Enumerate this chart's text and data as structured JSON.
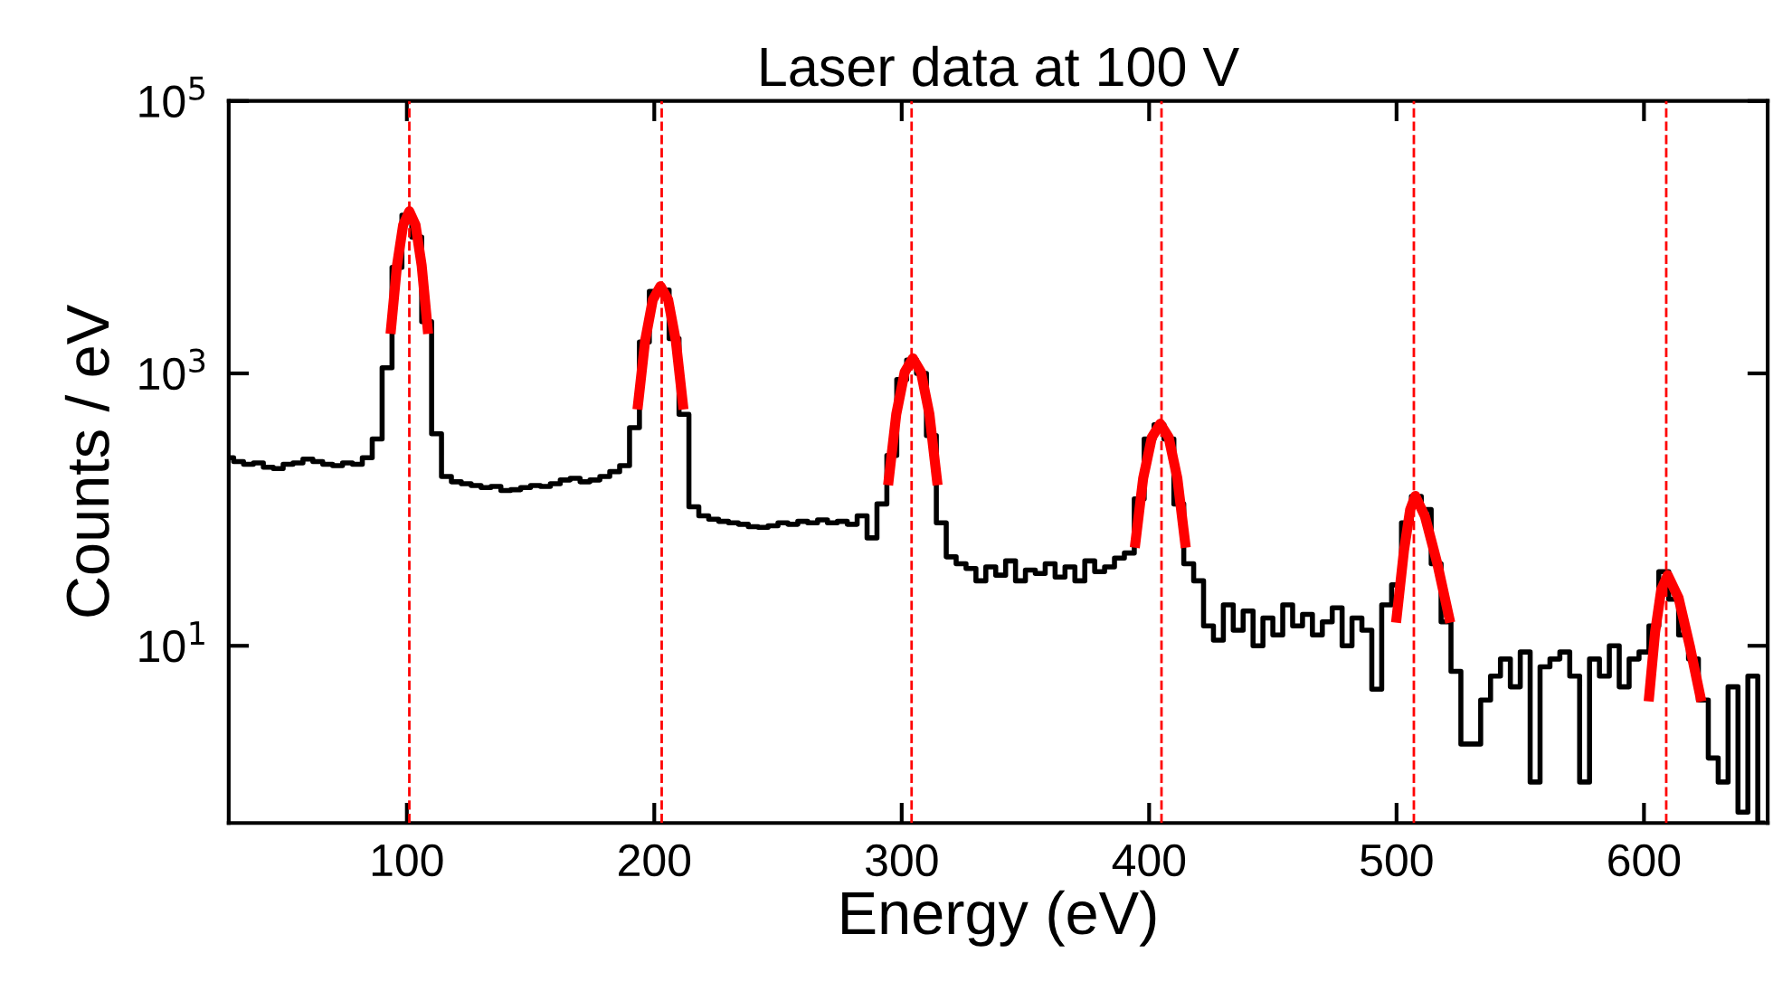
{
  "chart_data": {
    "type": "step",
    "title": "Laser data at 100 V",
    "xlabel": "Energy (eV)",
    "ylabel": "Counts / eV",
    "log": "y",
    "xlim": [
      28,
      650
    ],
    "xticks": [
      100,
      200,
      300,
      400,
      500,
      600
    ],
    "ylim": [
      0.5,
      100000
    ],
    "yticks": [
      {
        "value": 10,
        "label": "10$^{1}$"
      },
      {
        "value": 1000,
        "label": "10$^{3}$"
      },
      {
        "value": 100000,
        "label": "10$^{5}$"
      }
    ],
    "grid": false,
    "series": [
      {
        "color": "#000000",
        "x": [
          28,
          32,
          36,
          40,
          44,
          48,
          52,
          56,
          60,
          64,
          68,
          72,
          76,
          80,
          84,
          88,
          92,
          96,
          100,
          104,
          108,
          112,
          116,
          120,
          124,
          128,
          132,
          136,
          140,
          144,
          148,
          152,
          156,
          160,
          164,
          168,
          172,
          176,
          180,
          184,
          188,
          192,
          196,
          200,
          204,
          208,
          212,
          216,
          220,
          224,
          228,
          232,
          236,
          240,
          244,
          248,
          252,
          256,
          260,
          264,
          268,
          272,
          276,
          280,
          284,
          288,
          292,
          296,
          300,
          304,
          308,
          312,
          316,
          320,
          324,
          328,
          332,
          336,
          340,
          344,
          348,
          352,
          356,
          360,
          364,
          368,
          372,
          376,
          380,
          384,
          388,
          392,
          396,
          400,
          404,
          408,
          412,
          416,
          420,
          424,
          428,
          432,
          436,
          440,
          444,
          448,
          452,
          456,
          460,
          464,
          468,
          472,
          476,
          480,
          484,
          488,
          492,
          496,
          500,
          504,
          508,
          512,
          516,
          520,
          524,
          528,
          532,
          536,
          540,
          544,
          548,
          552,
          556,
          560,
          564,
          568,
          572,
          576,
          580,
          584,
          588,
          592,
          596,
          600,
          604,
          608,
          612,
          616,
          620,
          624,
          628,
          632,
          636,
          640,
          644,
          648
        ],
        "values": [
          240,
          225,
          215,
          220,
          205,
          200,
          215,
          220,
          235,
          225,
          215,
          210,
          220,
          215,
          240,
          330,
          1100,
          6000,
          14500,
          10000,
          2400,
          360,
          175,
          160,
          155,
          150,
          145,
          148,
          138,
          140,
          145,
          150,
          148,
          155,
          165,
          170,
          160,
          165,
          175,
          190,
          210,
          400,
          1700,
          4000,
          4100,
          1800,
          500,
          105,
          90,
          85,
          82,
          80,
          78,
          75,
          74,
          76,
          80,
          78,
          82,
          80,
          84,
          80,
          82,
          78,
          90,
          62,
          110,
          250,
          900,
          1250,
          1000,
          350,
          80,
          45,
          40,
          37,
          30,
          38,
          33,
          42,
          30,
          36,
          34,
          40,
          32,
          38,
          30,
          42,
          35,
          38,
          44,
          48,
          120,
          330,
          420,
          330,
          110,
          40,
          30,
          14,
          11,
          20,
          13,
          18,
          10,
          16,
          12,
          20,
          14,
          17,
          12,
          15,
          19,
          10,
          16,
          13,
          4.8,
          20,
          28,
          80,
          125,
          100,
          40,
          15,
          6.5,
          1.9,
          1.9,
          4,
          6,
          8,
          5,
          9,
          1,
          7,
          8,
          9,
          6,
          1,
          8,
          6,
          10,
          5,
          8,
          9,
          14,
          35,
          22,
          12,
          8,
          4,
          1.5,
          1,
          5,
          0.6,
          6,
          0.5
        ]
      },
      {
        "type": "line",
        "color": "#ff0000",
        "x": [
          93.4,
          96,
          98.5,
          101,
          103.5,
          106,
          108.6
        ],
        "values": [
          1950,
          6170,
          12300,
          15500,
          12300,
          6170,
          1950
        ]
      },
      {
        "type": "line",
        "color": "#ff0000",
        "x": [
          193.2,
          196.3,
          199.4,
          202.5,
          205.6,
          208.7,
          211.8
        ],
        "values": [
          543,
          1740,
          3470,
          4370,
          3470,
          1740,
          543
        ]
      },
      {
        "type": "line",
        "color": "#ff0000",
        "x": [
          294.5,
          297.8,
          301.2,
          304.5,
          307.8,
          311.2,
          314.5
        ],
        "values": [
          151,
          501,
          1020,
          1290,
          1020,
          501,
          151
        ]
      },
      {
        "type": "line",
        "color": "#ff0000",
        "x": [
          394.2,
          397.6,
          401.1,
          404.5,
          407.9,
          411.4,
          414.8
        ],
        "values": [
          52.5,
          170,
          339,
          427,
          339,
          170,
          52.5
        ]
      },
      {
        "type": "line",
        "color": "#ff0000",
        "x": [
          499.8,
          503,
          505.5,
          507.6,
          511.5,
          516.5,
          521.7
        ],
        "values": [
          14.8,
          50,
          100,
          126,
          89,
          40,
          14.8
        ]
      },
      {
        "type": "line",
        "color": "#ff0000",
        "x": [
          601.9,
          604.5,
          607,
          609.6,
          614,
          618.5,
          623.2
        ],
        "values": [
          3.9,
          12.6,
          26,
          33,
          22.4,
          10,
          3.9
        ]
      }
    ],
    "ref_lines": [
      {
        "axis": "x",
        "value": 101,
        "color": "#ff0000",
        "line_style": "dashed"
      },
      {
        "axis": "x",
        "value": 203,
        "color": "#ff0000",
        "line_style": "dashed"
      },
      {
        "axis": "x",
        "value": 304,
        "color": "#ff0000",
        "line_style": "dashed"
      },
      {
        "axis": "x",
        "value": 405,
        "color": "#ff0000",
        "line_style": "dashed"
      },
      {
        "axis": "x",
        "value": 507,
        "color": "#ff0000",
        "line_style": "dashed"
      },
      {
        "axis": "x",
        "value": 609,
        "color": "#ff0000",
        "line_style": "dashed"
      }
    ]
  }
}
